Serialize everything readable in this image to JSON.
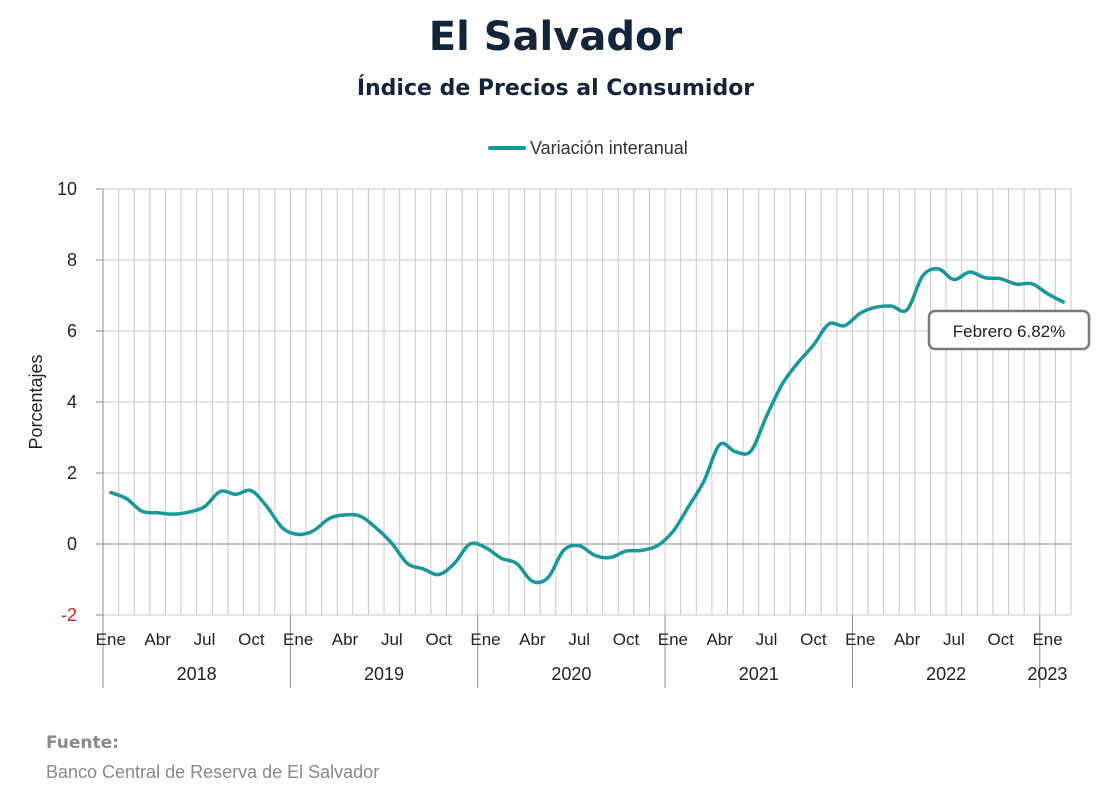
{
  "title": "El Salvador",
  "subtitle": "Índice de Precios al Consumidor",
  "source": {
    "heading": "Fuente:",
    "text": "Banco Central de Reserva de El Salvador"
  },
  "colors": {
    "series": "#17989a",
    "negative_tick": "#e02020",
    "grid": "#c8c8c8",
    "title": "#14243c"
  },
  "chart_data": {
    "type": "line",
    "ylabel": "Porcentajes",
    "ylim": [
      -2,
      10
    ],
    "yticks": [
      -2,
      0,
      2,
      4,
      6,
      8,
      10
    ],
    "grid": true,
    "legend_position": "top-center",
    "month_labels": [
      "Ene",
      "Abr",
      "Jul",
      "Oct"
    ],
    "years": [
      "2018",
      "2019",
      "2020",
      "2021",
      "2022",
      "2023"
    ],
    "callout": "Febrero 6.82%",
    "series": [
      {
        "name": "Variación interanual",
        "start": "2018-01",
        "values": [
          1.45,
          1.28,
          0.92,
          0.88,
          0.84,
          0.9,
          1.05,
          1.48,
          1.4,
          1.5,
          1.05,
          0.45,
          0.27,
          0.38,
          0.72,
          0.82,
          0.78,
          0.45,
          0.02,
          -0.55,
          -0.7,
          -0.86,
          -0.55,
          0.0,
          -0.1,
          -0.4,
          -0.55,
          -1.05,
          -0.95,
          -0.18,
          -0.05,
          -0.32,
          -0.38,
          -0.2,
          -0.18,
          -0.05,
          0.35,
          1.05,
          1.78,
          2.8,
          2.6,
          2.62,
          3.6,
          4.5,
          5.1,
          5.6,
          6.2,
          6.15,
          6.5,
          6.67,
          6.7,
          6.6,
          7.55,
          7.75,
          7.45,
          7.66,
          7.5,
          7.47,
          7.32,
          7.33,
          7.05,
          6.82
        ]
      }
    ]
  }
}
